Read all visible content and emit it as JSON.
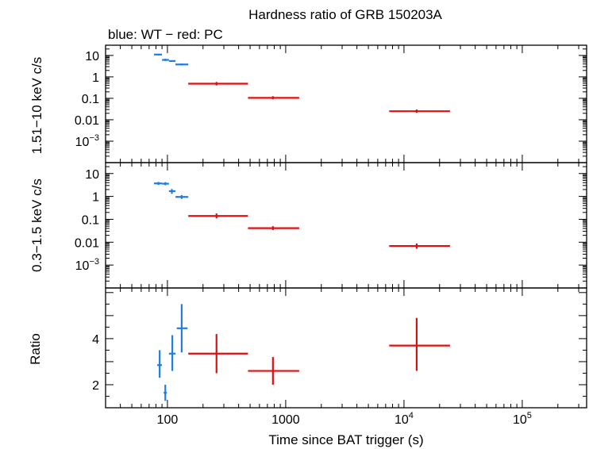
{
  "chart_data": [
    {
      "type": "scatter",
      "title": "Hardness ratio of GRB 150203A",
      "subtitle": "blue: WT − red: PC",
      "xlabel": "Time since BAT trigger (s)",
      "ylabel": "1.51−10 keV c/s",
      "xscale": "log",
      "yscale": "log",
      "xlim": [
        30,
        350000
      ],
      "ylim": [
        0.0001,
        30
      ],
      "y_ticks": [
        {
          "value": 10,
          "label": "10"
        },
        {
          "value": 1,
          "label": "1"
        },
        {
          "value": 0.1,
          "label": "0.1"
        },
        {
          "value": 0.01,
          "label": "0.01"
        },
        {
          "value": 0.001,
          "label": "10",
          "exp": "−3"
        }
      ],
      "series": [
        {
          "name": "WT",
          "color": "#1f7fe0",
          "points": [
            {
              "x": 84,
              "xerr": [
                77,
                90
              ],
              "y": 11,
              "yerr": [
                10,
                12
              ]
            },
            {
              "x": 96,
              "xerr": [
                90,
                103
              ],
              "y": 6.2,
              "yerr": [
                5.5,
                7
              ]
            },
            {
              "x": 109,
              "xerr": [
                103,
                117
              ],
              "y": 5.5,
              "yerr": [
                5,
                6
              ]
            },
            {
              "x": 132,
              "xerr": [
                117,
                150
              ],
              "y": 3.8,
              "yerr": [
                3.4,
                4.2
              ]
            }
          ]
        },
        {
          "name": "PC",
          "color": "#e01010",
          "points": [
            {
              "x": 260,
              "xerr": [
                150,
                480
              ],
              "y": 0.48,
              "yerr": [
                0.4,
                0.58
              ]
            },
            {
              "x": 780,
              "xerr": [
                480,
                1300
              ],
              "y": 0.105,
              "yerr": [
                0.09,
                0.125
              ]
            },
            {
              "x": 12800,
              "xerr": [
                7500,
                24500
              ],
              "y": 0.025,
              "yerr": [
                0.021,
                0.03
              ]
            }
          ]
        }
      ]
    },
    {
      "type": "scatter",
      "xlabel": "Time since BAT trigger (s)",
      "ylabel": "0.3−1.5 keV c/s",
      "xscale": "log",
      "yscale": "log",
      "xlim": [
        30,
        350000
      ],
      "ylim": [
        0.0001,
        30
      ],
      "y_ticks": [
        {
          "value": 10,
          "label": "10"
        },
        {
          "value": 1,
          "label": "1"
        },
        {
          "value": 0.1,
          "label": "0.1"
        },
        {
          "value": 0.01,
          "label": "0.01"
        },
        {
          "value": 0.001,
          "label": "10",
          "exp": "−3"
        }
      ],
      "series": [
        {
          "name": "WT",
          "color": "#1f7fe0",
          "points": [
            {
              "x": 84,
              "xerr": [
                77,
                90
              ],
              "y": 3.7,
              "yerr": [
                3.2,
                4.3
              ]
            },
            {
              "x": 96,
              "xerr": [
                90,
                103
              ],
              "y": 3.6,
              "yerr": [
                3.1,
                4.2
              ]
            },
            {
              "x": 109,
              "xerr": [
                103,
                117
              ],
              "y": 1.7,
              "yerr": [
                1.3,
                2.1
              ]
            },
            {
              "x": 132,
              "xerr": [
                117,
                150
              ],
              "y": 0.95,
              "yerr": [
                0.78,
                1.15
              ]
            }
          ]
        },
        {
          "name": "PC",
          "color": "#e01010",
          "points": [
            {
              "x": 260,
              "xerr": [
                150,
                480
              ],
              "y": 0.14,
              "yerr": [
                0.11,
                0.18
              ]
            },
            {
              "x": 780,
              "xerr": [
                480,
                1300
              ],
              "y": 0.041,
              "yerr": [
                0.034,
                0.05
              ]
            },
            {
              "x": 12800,
              "xerr": [
                7500,
                24500
              ],
              "y": 0.0068,
              "yerr": [
                0.0052,
                0.0088
              ]
            }
          ]
        }
      ]
    },
    {
      "type": "scatter",
      "xlabel": "Time since BAT trigger (s)",
      "ylabel": "Ratio",
      "xscale": "log",
      "yscale": "linear",
      "xlim": [
        30,
        350000
      ],
      "ylim": [
        1,
        6.2
      ],
      "x_ticks": [
        {
          "value": 100,
          "label": "100"
        },
        {
          "value": 1000,
          "label": "1000"
        },
        {
          "value": 10000,
          "label": "10",
          "exp": "4"
        },
        {
          "value": 100000,
          "label": "10",
          "exp": "5"
        }
      ],
      "y_ticks": [
        {
          "value": 2,
          "label": "2"
        },
        {
          "value": 4,
          "label": "4"
        }
      ],
      "series": [
        {
          "name": "WT",
          "color": "#1f7fe0",
          "points": [
            {
              "x": 86,
              "xerr": [
                82,
                90
              ],
              "y": 2.85,
              "yerr": [
                2.3,
                3.5
              ]
            },
            {
              "x": 96,
              "xerr": [
                93,
                99
              ],
              "y": 1.65,
              "yerr": [
                1.3,
                2.0
              ]
            },
            {
              "x": 110,
              "xerr": [
                103,
                117
              ],
              "y": 3.35,
              "yerr": [
                2.6,
                4.15
              ]
            },
            {
              "x": 132,
              "xerr": [
                120,
                148
              ],
              "y": 4.45,
              "yerr": [
                3.4,
                5.5
              ]
            }
          ]
        },
        {
          "name": "PC",
          "color": "#e01010",
          "points": [
            {
              "x": 260,
              "xerr": [
                150,
                480
              ],
              "y": 3.35,
              "yerr": [
                2.5,
                4.2
              ]
            },
            {
              "x": 780,
              "xerr": [
                480,
                1300
              ],
              "y": 2.6,
              "yerr": [
                2.0,
                3.2
              ]
            },
            {
              "x": 12800,
              "xerr": [
                7500,
                24500
              ],
              "y": 3.7,
              "yerr": [
                2.6,
                4.9
              ]
            }
          ]
        }
      ]
    }
  ]
}
